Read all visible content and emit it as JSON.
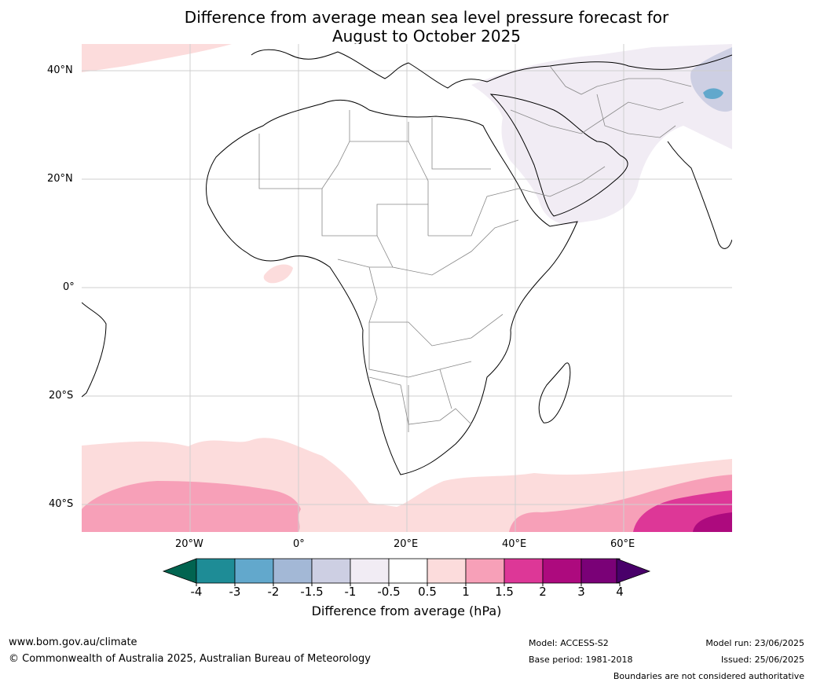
{
  "title": {
    "line1": "Difference from average mean sea level pressure forecast for",
    "line2": "August to October 2025"
  },
  "map": {
    "region": "Africa",
    "lat_labels": [
      "40°N",
      "20°N",
      "0°",
      "20°S",
      "40°S"
    ],
    "lon_labels": [
      "20°W",
      "0°",
      "20°E",
      "40°E",
      "60°E"
    ]
  },
  "colorbar": {
    "title": "Difference from average (hPa)",
    "ticks": [
      "-4",
      "-3",
      "-2",
      "-1.5",
      "-1",
      "-0.5",
      "0.5",
      "1",
      "1.5",
      "2",
      "3",
      "4"
    ],
    "colors": [
      "#1e8c96",
      "#62a8cc",
      "#a3b8d6",
      "#cdcfe3",
      "#f1ecf4",
      "#ffffff",
      "#fcdcdc",
      "#f7a0b8",
      "#dd3797",
      "#ad0a7e",
      "#7a0177"
    ],
    "under_color": "#016450",
    "over_color": "#49006a"
  },
  "footer": {
    "website": "www.bom.gov.au/climate",
    "copyright": "© Commonwealth of Australia 2025, Australian Bureau of Meteorology",
    "model": "Model: ACCESS-S2",
    "base_period": "Base period: 1981-2018",
    "model_run": "Model run: 23/06/2025",
    "issued": "Issued: 25/06/2025",
    "disclaimer": "Boundaries are not considered authoritative"
  }
}
